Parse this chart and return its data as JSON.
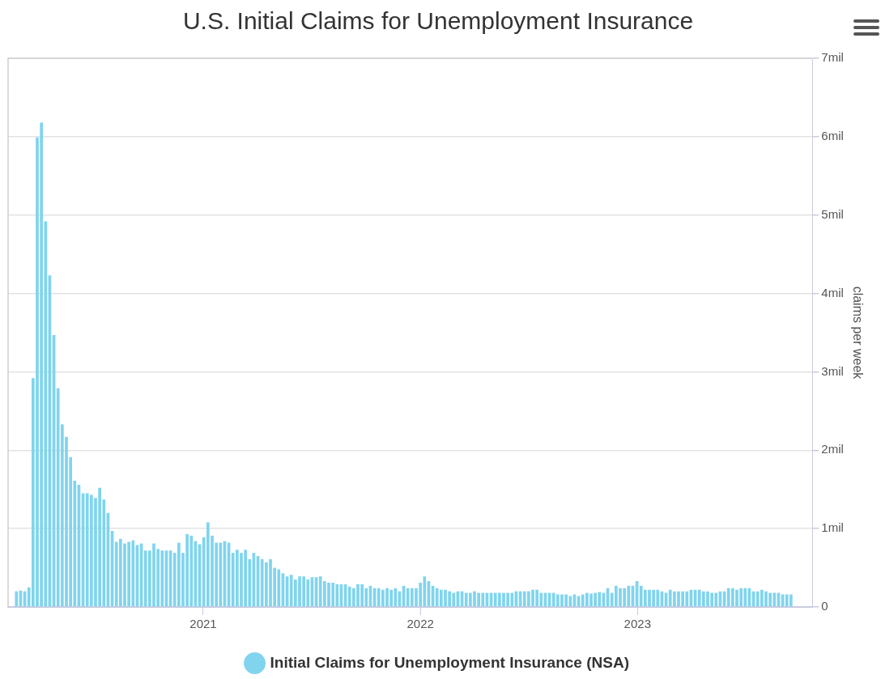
{
  "chart_data": {
    "type": "bar",
    "title": "U.S. Initial Claims for Unemployment Insurance",
    "y2label": "claims per week",
    "legend": "bottom",
    "grid": "y",
    "xlim": [
      "2020-02-08",
      "2023-10-22"
    ],
    "xticks": [
      "2021",
      "2022",
      "2023"
    ],
    "y2lim": [
      0,
      7
    ],
    "y2ticks": [
      0,
      {
        "value": 1,
        "label": "1mil"
      },
      {
        "value": 2,
        "label": "2mil"
      },
      {
        "value": 3,
        "label": "3mil"
      },
      {
        "value": 4,
        "label": "4mil"
      },
      {
        "value": 5,
        "label": "5mil"
      },
      {
        "value": 6,
        "label": "6mil"
      },
      {
        "value": 7,
        "label": "7mil"
      }
    ],
    "x": [
      "2020-02-22",
      "2020-02-29",
      "2020-03-07",
      "2020-03-14",
      "2020-03-21",
      "2020-03-28",
      "2020-04-04",
      "2020-04-11",
      "2020-04-18",
      "2020-04-25",
      "2020-05-02",
      "2020-05-09",
      "2020-05-16",
      "2020-05-23",
      "2020-05-30",
      "2020-06-06",
      "2020-06-13",
      "2020-06-20",
      "2020-06-27",
      "2020-07-04",
      "2020-07-11",
      "2020-07-18",
      "2020-07-25",
      "2020-08-01",
      "2020-08-08",
      "2020-08-15",
      "2020-08-22",
      "2020-08-29",
      "2020-09-05",
      "2020-09-12",
      "2020-09-19",
      "2020-09-26",
      "2020-10-03",
      "2020-10-10",
      "2020-10-17",
      "2020-10-24",
      "2020-10-31",
      "2020-11-07",
      "2020-11-14",
      "2020-11-21",
      "2020-11-28",
      "2020-12-05",
      "2020-12-12",
      "2020-12-19",
      "2020-12-26",
      "2021-01-02",
      "2021-01-09",
      "2021-01-16",
      "2021-01-23",
      "2021-01-30",
      "2021-02-06",
      "2021-02-13",
      "2021-02-20",
      "2021-02-27",
      "2021-03-06",
      "2021-03-13",
      "2021-03-20",
      "2021-03-27",
      "2021-04-03",
      "2021-04-10",
      "2021-04-17",
      "2021-04-24",
      "2021-05-01",
      "2021-05-08",
      "2021-05-15",
      "2021-05-22",
      "2021-05-29",
      "2021-06-05",
      "2021-06-12",
      "2021-06-19",
      "2021-06-26",
      "2021-07-03",
      "2021-07-10",
      "2021-07-17",
      "2021-07-24",
      "2021-07-31",
      "2021-08-07",
      "2021-08-14",
      "2021-08-21",
      "2021-08-28",
      "2021-09-04",
      "2021-09-11",
      "2021-09-18",
      "2021-09-25",
      "2021-10-02",
      "2021-10-09",
      "2021-10-16",
      "2021-10-23",
      "2021-10-30",
      "2021-11-06",
      "2021-11-13",
      "2021-11-20",
      "2021-11-27",
      "2021-12-04",
      "2021-12-11",
      "2021-12-18",
      "2021-12-25",
      "2022-01-01",
      "2022-01-08",
      "2022-01-15",
      "2022-01-22",
      "2022-01-29",
      "2022-02-05",
      "2022-02-12",
      "2022-02-19",
      "2022-02-26",
      "2022-03-05",
      "2022-03-12",
      "2022-03-19",
      "2022-03-26",
      "2022-04-02",
      "2022-04-09",
      "2022-04-16",
      "2022-04-23",
      "2022-04-30",
      "2022-05-07",
      "2022-05-14",
      "2022-05-21",
      "2022-05-28",
      "2022-06-04",
      "2022-06-11",
      "2022-06-18",
      "2022-06-25",
      "2022-07-02",
      "2022-07-09",
      "2022-07-16",
      "2022-07-23",
      "2022-07-30",
      "2022-08-06",
      "2022-08-13",
      "2022-08-20",
      "2022-08-27",
      "2022-09-03",
      "2022-09-10",
      "2022-09-17",
      "2022-09-24",
      "2022-10-01",
      "2022-10-08",
      "2022-10-15",
      "2022-10-22",
      "2022-10-29",
      "2022-11-05",
      "2022-11-12",
      "2022-11-19",
      "2022-11-26",
      "2022-12-03",
      "2022-12-10",
      "2022-12-17",
      "2022-12-24",
      "2022-12-31",
      "2023-01-07",
      "2023-01-14",
      "2023-01-21",
      "2023-01-28",
      "2023-02-04",
      "2023-02-11",
      "2023-02-18",
      "2023-02-25",
      "2023-03-04",
      "2023-03-11",
      "2023-03-18",
      "2023-03-25",
      "2023-04-01",
      "2023-04-08",
      "2023-04-15",
      "2023-04-22",
      "2023-04-29",
      "2023-05-06",
      "2023-05-13",
      "2023-05-20",
      "2023-05-27",
      "2023-06-03",
      "2023-06-10",
      "2023-06-17",
      "2023-06-24",
      "2023-07-01",
      "2023-07-08",
      "2023-07-15",
      "2023-07-22",
      "2023-07-29",
      "2023-08-05",
      "2023-08-12",
      "2023-08-19",
      "2023-08-26",
      "2023-09-02",
      "2023-09-09",
      "2023-09-16"
    ],
    "series": [
      {
        "name": "Initial Claims for Unemployment Insurance (NSA)",
        "color": "#80d4ee",
        "axis": "y2",
        "values": [
          0.2,
          0.21,
          0.2,
          0.25,
          2.92,
          5.99,
          6.18,
          4.92,
          4.23,
          3.47,
          2.79,
          2.33,
          2.17,
          1.91,
          1.61,
          1.56,
          1.45,
          1.45,
          1.43,
          1.39,
          1.52,
          1.37,
          1.2,
          0.97,
          0.83,
          0.87,
          0.81,
          0.83,
          0.85,
          0.79,
          0.81,
          0.72,
          0.72,
          0.81,
          0.74,
          0.72,
          0.72,
          0.72,
          0.69,
          0.82,
          0.69,
          0.93,
          0.91,
          0.84,
          0.8,
          0.89,
          1.08,
          0.91,
          0.82,
          0.82,
          0.84,
          0.82,
          0.69,
          0.73,
          0.69,
          0.73,
          0.61,
          0.69,
          0.65,
          0.61,
          0.57,
          0.61,
          0.5,
          0.48,
          0.43,
          0.39,
          0.41,
          0.35,
          0.39,
          0.39,
          0.35,
          0.38,
          0.38,
          0.39,
          0.33,
          0.31,
          0.31,
          0.29,
          0.29,
          0.29,
          0.26,
          0.24,
          0.29,
          0.29,
          0.24,
          0.27,
          0.24,
          0.24,
          0.22,
          0.24,
          0.22,
          0.24,
          0.2,
          0.27,
          0.24,
          0.24,
          0.24,
          0.31,
          0.39,
          0.33,
          0.27,
          0.24,
          0.22,
          0.22,
          0.2,
          0.18,
          0.2,
          0.2,
          0.18,
          0.18,
          0.2,
          0.18,
          0.18,
          0.18,
          0.18,
          0.18,
          0.18,
          0.18,
          0.18,
          0.18,
          0.2,
          0.2,
          0.2,
          0.2,
          0.22,
          0.22,
          0.18,
          0.18,
          0.18,
          0.18,
          0.16,
          0.16,
          0.16,
          0.14,
          0.16,
          0.14,
          0.16,
          0.18,
          0.17,
          0.18,
          0.19,
          0.18,
          0.24,
          0.18,
          0.27,
          0.24,
          0.24,
          0.27,
          0.27,
          0.33,
          0.27,
          0.22,
          0.22,
          0.22,
          0.22,
          0.2,
          0.18,
          0.22,
          0.2,
          0.2,
          0.2,
          0.2,
          0.22,
          0.22,
          0.22,
          0.2,
          0.2,
          0.18,
          0.18,
          0.2,
          0.2,
          0.24,
          0.24,
          0.22,
          0.24,
          0.24,
          0.24,
          0.2,
          0.2,
          0.22,
          0.2,
          0.18,
          0.18,
          0.18,
          0.16,
          0.16,
          0.16
        ]
      }
    ]
  }
}
